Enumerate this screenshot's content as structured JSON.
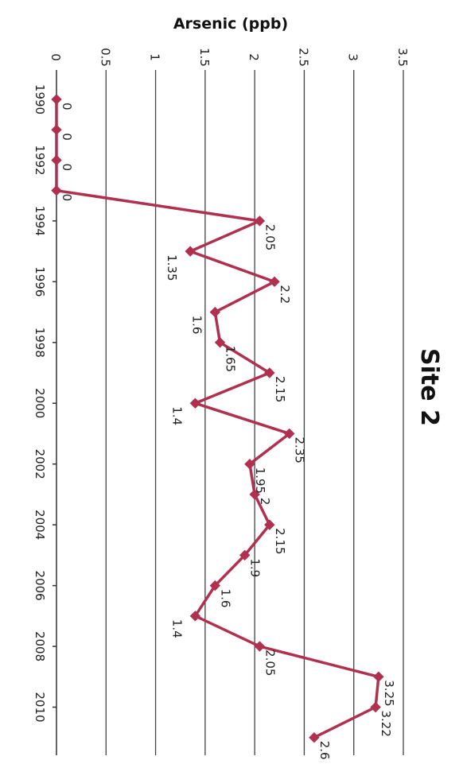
{
  "chart_data": {
    "type": "line",
    "title": "Site 2",
    "xlabel": "",
    "ylabel": "Arsenic (ppb)",
    "orientation": "rotated 90° clockwise (years run down the page, arsenic values increase to the right)",
    "ylim": [
      0,
      3.5
    ],
    "yticks": [
      "0",
      "0.5",
      "1",
      "1.5",
      "2",
      "2.5",
      "3",
      "3.5"
    ],
    "xlim": [
      1990,
      2011.4
    ],
    "xticks": [
      "1990",
      "1992",
      "1994",
      "1996",
      "1998",
      "2000",
      "2002",
      "2004",
      "2006",
      "2008",
      "2010"
    ],
    "grid": true,
    "legend": "none",
    "series_color": "#b0304f",
    "x": [
      1990,
      1991,
      1992,
      1993,
      1994,
      1995,
      1996,
      1997,
      1998,
      1999,
      2000,
      2001,
      2002,
      2003,
      2004,
      2005,
      2006,
      2007,
      2008,
      2009,
      2010,
      2011
    ],
    "y": [
      0,
      0,
      0,
      0,
      2.05,
      1.35,
      2.2,
      1.6,
      1.65,
      2.15,
      1.4,
      2.35,
      1.95,
      2,
      2.15,
      1.9,
      1.6,
      1.4,
      2.05,
      3.25,
      3.22,
      2.6
    ],
    "data_labels": [
      "0",
      "0",
      "0",
      "0",
      "2.05",
      "1.35",
      "2.2",
      "1.6",
      "1.65",
      "2.15",
      "1.4",
      "2.35",
      "1.95",
      "2",
      "2.15",
      "1.9",
      "1.6",
      "1.4",
      "2.05",
      "3.25",
      "3.22",
      "2.6"
    ]
  }
}
